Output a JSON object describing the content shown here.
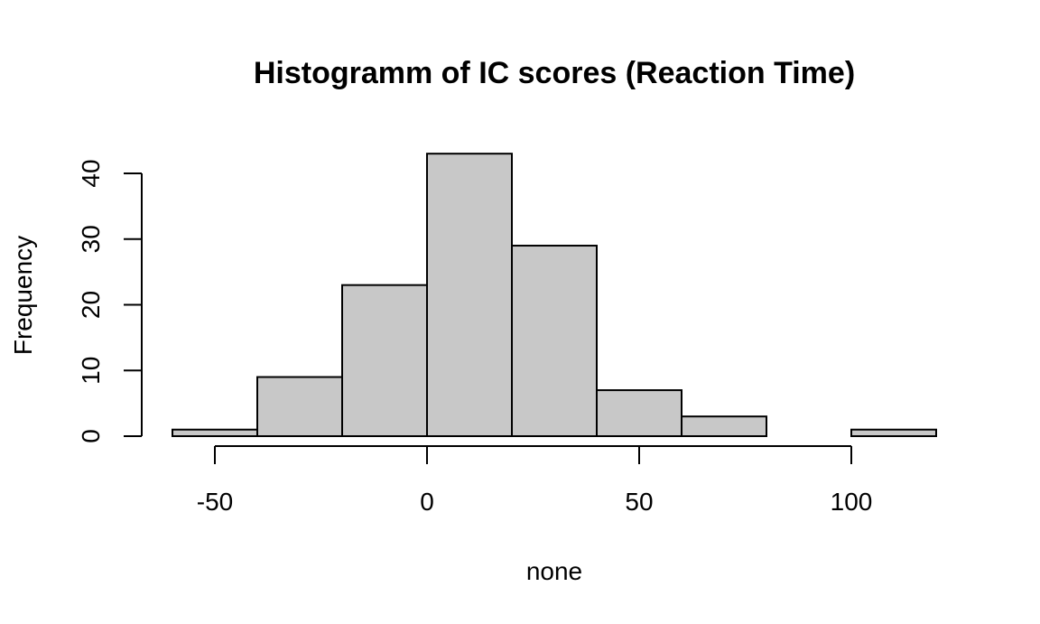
{
  "chart_data": {
    "type": "bar",
    "title": "Histogramm of IC scores (Reaction Time)",
    "xlabel": "none",
    "ylabel": "Frequency",
    "bins": [
      {
        "from": -60,
        "to": -40,
        "count": 1
      },
      {
        "from": -40,
        "to": -20,
        "count": 9
      },
      {
        "from": -20,
        "to": 0,
        "count": 23
      },
      {
        "from": 0,
        "to": 20,
        "count": 43
      },
      {
        "from": 20,
        "to": 40,
        "count": 29
      },
      {
        "from": 40,
        "to": 60,
        "count": 7
      },
      {
        "from": 60,
        "to": 80,
        "count": 3
      },
      {
        "from": 80,
        "to": 100,
        "count": 0
      },
      {
        "from": 100,
        "to": 120,
        "count": 1
      }
    ],
    "xlim": [
      -60,
      120
    ],
    "ylim": [
      0,
      43
    ],
    "x_ticks": [
      -50,
      0,
      50,
      100
    ],
    "x_tick_labels": [
      "-50",
      "0",
      "50",
      "100"
    ],
    "y_ticks": [
      0,
      10,
      20,
      30,
      40
    ],
    "y_tick_labels": [
      "0",
      "10",
      "20",
      "30",
      "40"
    ],
    "grid": false,
    "bar_color": "#c8c8c8",
    "edge_color": "#000000"
  }
}
